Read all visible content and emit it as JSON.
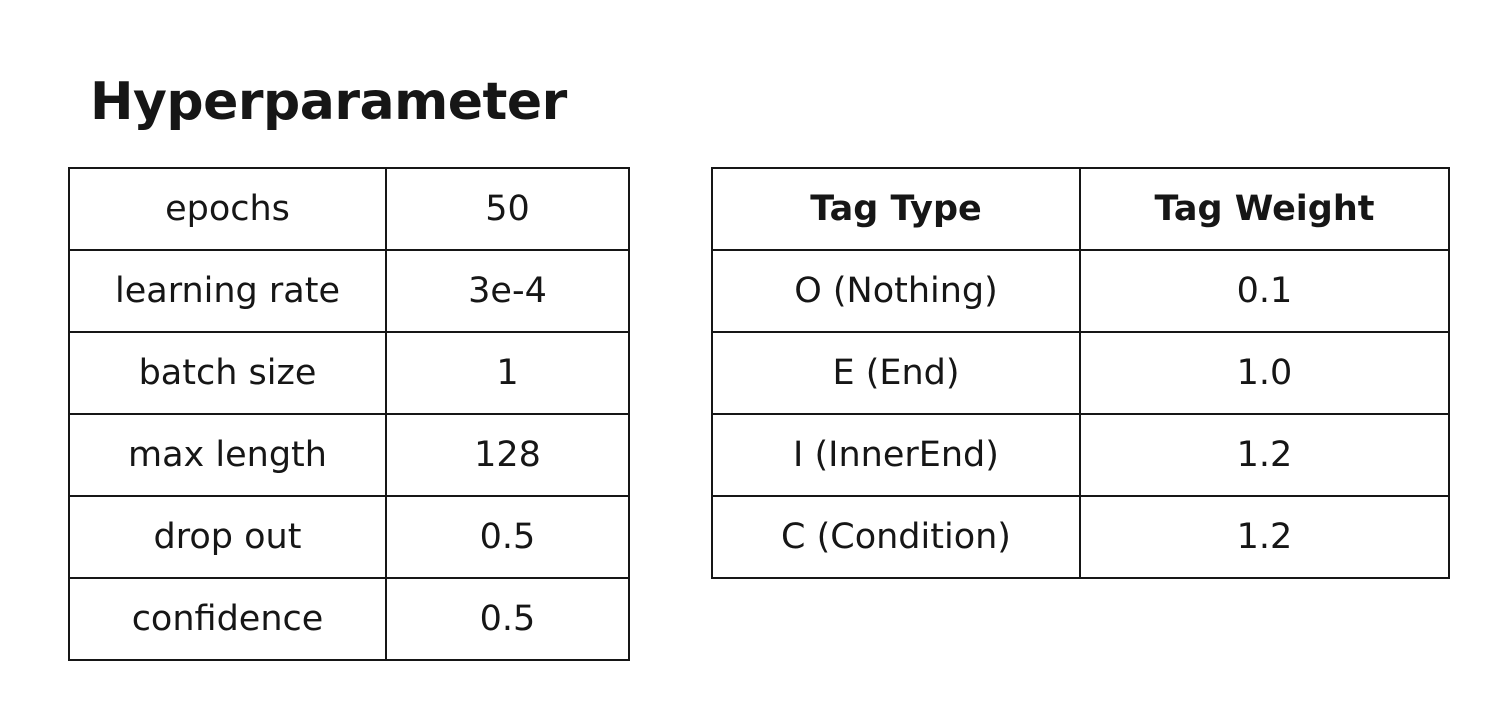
{
  "title": "Hyperparameter",
  "hyperparameters": [
    {
      "name": "epochs",
      "value": "50"
    },
    {
      "name": "learning rate",
      "value": "3e-4"
    },
    {
      "name": "batch size",
      "value": "1"
    },
    {
      "name": "max length",
      "value": "128"
    },
    {
      "name": "drop out",
      "value": "0.5"
    },
    {
      "name": "confidence",
      "value": "0.5"
    }
  ],
  "tag_table": {
    "headers": [
      "Tag Type",
      "Tag Weight"
    ],
    "rows": [
      {
        "type": "O (Nothing)",
        "weight": "0.1"
      },
      {
        "type": "E (End)",
        "weight": "1.0"
      },
      {
        "type": "I (InnerEnd)",
        "weight": "1.2"
      },
      {
        "type": "C (Condition)",
        "weight": "1.2"
      }
    ]
  },
  "colors": {
    "text": "#161616",
    "border": "#161616",
    "background": "#ffffff"
  }
}
